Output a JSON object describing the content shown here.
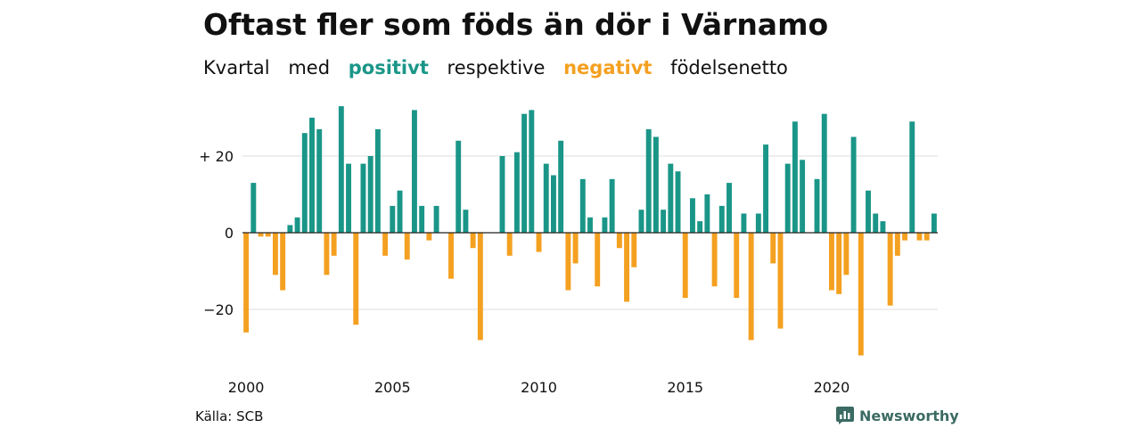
{
  "title": "Oftast fler som föds än dör i Värnamo",
  "subtitle": {
    "word1": "Kvartal",
    "word2": "med",
    "positive": "positivt",
    "word3": "respektive",
    "negative": "negativt",
    "word4": "födelsenetto"
  },
  "source": "Källa: SCB",
  "brand": "Newsworthy",
  "colors": {
    "positive": "#1a9688",
    "negative": "#f4a020",
    "grid": "#dddddd",
    "axis": "#222222",
    "brand": "#3b6b63"
  },
  "chart_data": {
    "type": "bar",
    "x_start": "2000 Q1",
    "xtick_labels": [
      "2000",
      "2005",
      "2010",
      "2015",
      "2020"
    ],
    "ytick_labels": [
      "+ 20",
      "0",
      "−20"
    ],
    "yticks": [
      20,
      0,
      -20
    ],
    "ylim": [
      -33,
      34
    ],
    "values": [
      -26,
      13,
      -1,
      -1,
      -11,
      -15,
      2,
      4,
      26,
      30,
      27,
      -11,
      -6,
      33,
      18,
      -24,
      18,
      20,
      27,
      -6,
      7,
      11,
      -7,
      32,
      7,
      -2,
      7,
      0,
      -12,
      24,
      6,
      -4,
      -28,
      0,
      0,
      20,
      -6,
      21,
      31,
      32,
      -5,
      18,
      15,
      24,
      -15,
      -8,
      14,
      4,
      -14,
      4,
      14,
      -4,
      -18,
      -9,
      6,
      27,
      25,
      6,
      18,
      16,
      -17,
      9,
      3,
      10,
      -14,
      7,
      13,
      -17,
      5,
      -28,
      5,
      23,
      -8,
      -25,
      18,
      29,
      19,
      0,
      14,
      31,
      -15,
      -16,
      -11,
      25,
      -32,
      11,
      5,
      3,
      -19,
      -6,
      -2,
      29,
      -2,
      -2,
      5
    ]
  }
}
